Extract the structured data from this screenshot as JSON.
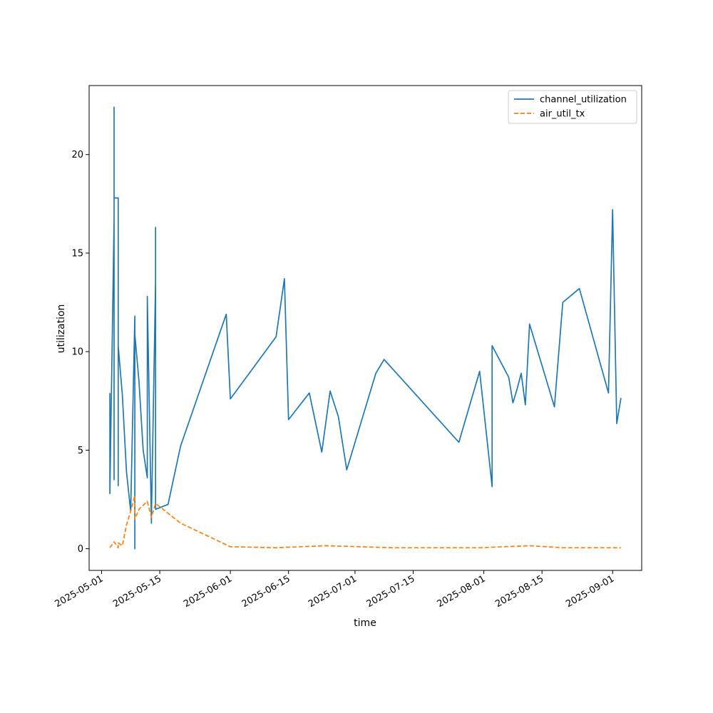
{
  "chart_data": {
    "type": "line",
    "xlabel": "time",
    "ylabel": "utilization",
    "xlim": [
      "2025-04-28",
      "2025-09-08"
    ],
    "ylim": [
      -1.1,
      23.5
    ],
    "x_ticks": [
      "2025-05-01",
      "2025-05-15",
      "2025-06-01",
      "2025-06-15",
      "2025-07-01",
      "2025-07-15",
      "2025-08-01",
      "2025-08-15",
      "2025-09-01"
    ],
    "y_ticks": [
      0,
      5,
      10,
      15,
      20
    ],
    "legend_position": "top-right",
    "grid": false,
    "series": [
      {
        "name": "channel_utilization",
        "color": "#1f77b4",
        "style": "solid",
        "points": [
          [
            "2025-05-03",
            7.9
          ],
          [
            "2025-05-03",
            2.8
          ],
          [
            "2025-05-04",
            16.7
          ],
          [
            "2025-05-04",
            22.4
          ],
          [
            "2025-05-04",
            3.5
          ],
          [
            "2025-05-04",
            17.8
          ],
          [
            "2025-05-05",
            17.8
          ],
          [
            "2025-05-05",
            3.2
          ],
          [
            "2025-05-05",
            10.3
          ],
          [
            "2025-05-06",
            7.8
          ],
          [
            "2025-05-07",
            3.9
          ],
          [
            "2025-05-08",
            1.9
          ],
          [
            "2025-05-09",
            11.8
          ],
          [
            "2025-05-09",
            6.0
          ],
          [
            "2025-05-09",
            0.0
          ],
          [
            "2025-05-09",
            10.9
          ],
          [
            "2025-05-10",
            8.5
          ],
          [
            "2025-05-11",
            5.0
          ],
          [
            "2025-05-12",
            3.6
          ],
          [
            "2025-05-12",
            12.8
          ],
          [
            "2025-05-13",
            1.3
          ],
          [
            "2025-05-13",
            1.6
          ],
          [
            "2025-05-14",
            13.6
          ],
          [
            "2025-05-14",
            16.3
          ],
          [
            "2025-05-14",
            2.0
          ],
          [
            "2025-05-17",
            2.25
          ],
          [
            "2025-05-20",
            5.2
          ],
          [
            "2025-05-31",
            11.9
          ],
          [
            "2025-06-01",
            7.6
          ],
          [
            "2025-06-12",
            10.75
          ],
          [
            "2025-06-14",
            13.7
          ],
          [
            "2025-06-15",
            6.55
          ],
          [
            "2025-06-20",
            7.9
          ],
          [
            "2025-06-23",
            4.9
          ],
          [
            "2025-06-25",
            8.0
          ],
          [
            "2025-06-27",
            6.7
          ],
          [
            "2025-06-29",
            4.0
          ],
          [
            "2025-07-06",
            8.9
          ],
          [
            "2025-07-08",
            9.6
          ],
          [
            "2025-07-26",
            5.4
          ],
          [
            "2025-07-31",
            9.0
          ],
          [
            "2025-08-03",
            3.15
          ],
          [
            "2025-08-03",
            10.3
          ],
          [
            "2025-08-07",
            8.7
          ],
          [
            "2025-08-08",
            7.4
          ],
          [
            "2025-08-09",
            8.1
          ],
          [
            "2025-08-10",
            8.9
          ],
          [
            "2025-08-11",
            7.3
          ],
          [
            "2025-08-12",
            11.4
          ],
          [
            "2025-08-18",
            7.2
          ],
          [
            "2025-08-20",
            12.5
          ],
          [
            "2025-08-24",
            13.2
          ],
          [
            "2025-08-31",
            7.9
          ],
          [
            "2025-09-01",
            17.2
          ],
          [
            "2025-09-02",
            6.35
          ],
          [
            "2025-09-03",
            7.65
          ]
        ]
      },
      {
        "name": "air_util_tx",
        "color": "#ff7f0e",
        "style": "dashed",
        "points": [
          [
            "2025-05-03",
            0.05
          ],
          [
            "2025-05-04",
            0.35
          ],
          [
            "2025-05-05",
            0.05
          ],
          [
            "2025-05-05",
            0.3
          ],
          [
            "2025-05-06",
            0.15
          ],
          [
            "2025-05-07",
            1.2
          ],
          [
            "2025-05-08",
            1.9
          ],
          [
            "2025-05-09",
            2.7
          ],
          [
            "2025-05-09",
            1.5
          ],
          [
            "2025-05-10",
            2.0
          ],
          [
            "2025-05-12",
            2.4
          ],
          [
            "2025-05-13",
            1.6
          ],
          [
            "2025-05-14",
            2.3
          ],
          [
            "2025-05-20",
            1.3
          ],
          [
            "2025-06-01",
            0.1
          ],
          [
            "2025-06-12",
            0.05
          ],
          [
            "2025-06-24",
            0.15
          ],
          [
            "2025-07-10",
            0.05
          ],
          [
            "2025-07-31",
            0.05
          ],
          [
            "2025-08-12",
            0.15
          ],
          [
            "2025-08-20",
            0.05
          ],
          [
            "2025-09-03",
            0.05
          ]
        ]
      }
    ]
  }
}
